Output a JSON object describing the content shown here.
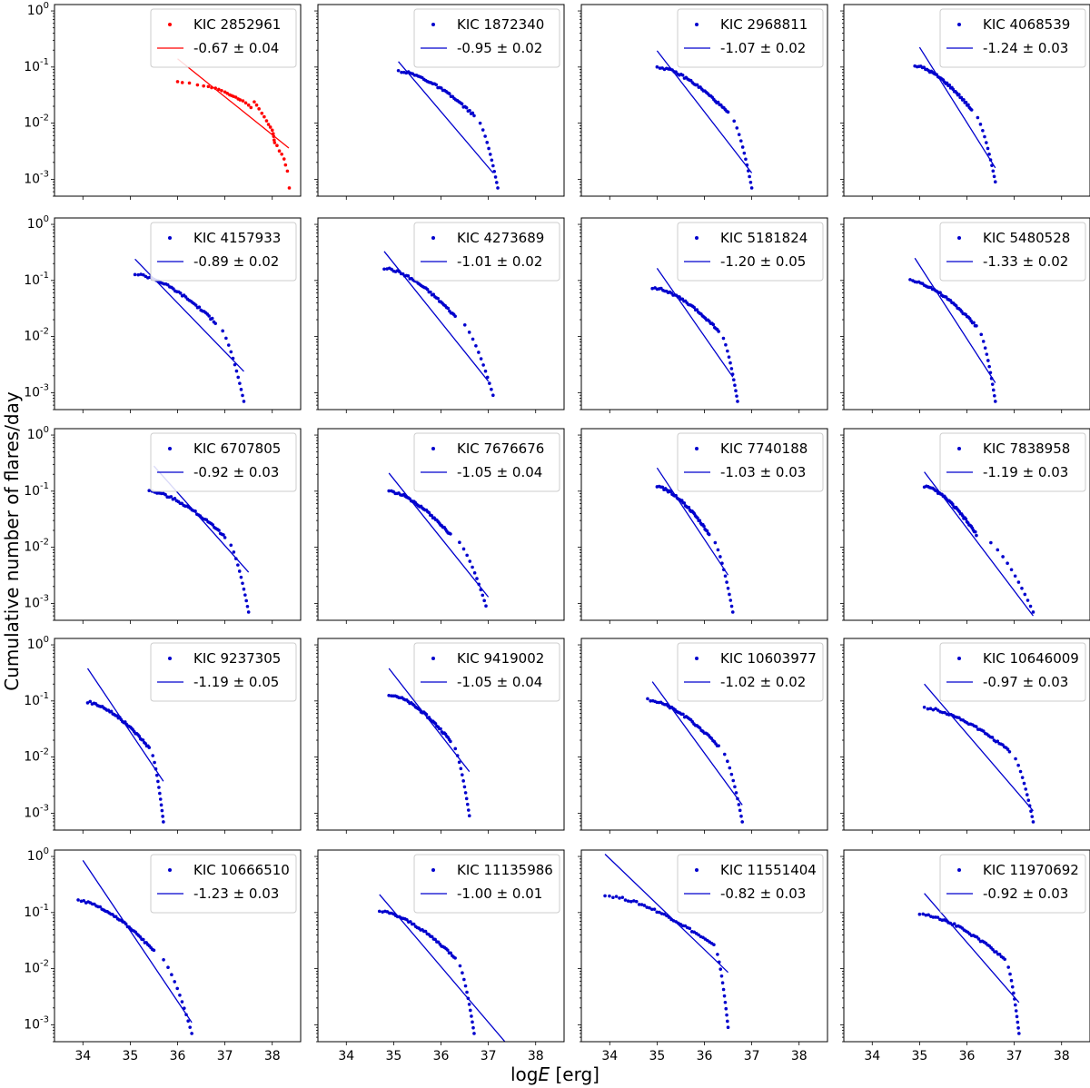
{
  "chart_data": {
    "type": "scatter",
    "grid_shape": [
      5,
      4
    ],
    "shared_x": true,
    "shared_y": true,
    "xlabel": "logE [erg]",
    "ylabel": "Cumulative number of flares/day",
    "xlim": [
      33.4,
      38.6
    ],
    "ylim": [
      0.0005,
      1.3
    ],
    "yscale": "log",
    "x_ticks": [
      34,
      35,
      36,
      37,
      38
    ],
    "x_tick_labels": [
      "34",
      "35",
      "36",
      "37",
      "38"
    ],
    "y_ticks": [
      1,
      0.1,
      0.01,
      0.001
    ],
    "y_tick_labels": [
      "10^0",
      "10^-1",
      "10^-2",
      "10^-3"
    ],
    "legend_position": "upper right",
    "panels": [
      {
        "star": "KIC 2852961",
        "slope": "-0.67 ± 0.04",
        "color": "#ff0000",
        "fit": [
          [
            36.0,
            0.14
          ],
          [
            38.35,
            0.0036
          ]
        ],
        "points": [
          [
            36.0,
            0.055
          ],
          [
            36.1,
            0.053
          ],
          [
            36.25,
            0.052
          ],
          [
            36.42,
            0.048
          ],
          [
            36.55,
            0.046
          ],
          [
            36.65,
            0.045
          ],
          [
            36.72,
            0.043
          ],
          [
            36.8,
            0.042
          ],
          [
            36.87,
            0.04
          ],
          [
            36.93,
            0.038
          ],
          [
            37.0,
            0.036
          ],
          [
            37.05,
            0.034
          ],
          [
            37.1,
            0.032
          ],
          [
            37.14,
            0.031
          ],
          [
            37.18,
            0.03
          ],
          [
            37.23,
            0.029
          ],
          [
            37.28,
            0.027
          ],
          [
            37.32,
            0.026
          ],
          [
            37.38,
            0.025
          ],
          [
            37.44,
            0.023
          ],
          [
            37.5,
            0.021
          ],
          [
            37.55,
            0.019
          ],
          [
            37.62,
            0.024
          ],
          [
            37.67,
            0.021
          ],
          [
            37.72,
            0.018
          ],
          [
            37.78,
            0.015
          ],
          [
            37.83,
            0.013
          ],
          [
            37.88,
            0.011
          ],
          [
            37.92,
            0.0095
          ],
          [
            37.96,
            0.0085
          ],
          [
            38.0,
            0.0075
          ],
          [
            38.02,
            0.0065
          ],
          [
            38.03,
            0.0058
          ],
          [
            38.04,
            0.005
          ],
          [
            38.05,
            0.0045
          ],
          [
            38.1,
            0.004
          ],
          [
            38.15,
            0.0032
          ],
          [
            38.2,
            0.0028
          ],
          [
            38.25,
            0.0023
          ],
          [
            38.28,
            0.0018
          ],
          [
            38.32,
            0.0014
          ],
          [
            38.36,
            0.0007
          ]
        ]
      },
      {
        "star": "KIC 1872340",
        "slope": "-0.95 ± 0.02",
        "color": "#0000cd",
        "fit": [
          [
            35.1,
            0.125
          ],
          [
            37.1,
            0.0013
          ]
        ],
        "start": [
          35.1,
          0.085
        ],
        "end": [
          37.2,
          0.0007
        ],
        "drop_x": 36.7
      },
      {
        "star": "KIC 2968811",
        "slope": "-1.07 ± 0.02",
        "color": "#0000cd",
        "fit": [
          [
            35.0,
            0.195
          ],
          [
            37.0,
            0.0013
          ]
        ],
        "start": [
          35.0,
          0.1
        ],
        "end": [
          37.0,
          0.0007
        ],
        "drop_x": 36.5
      },
      {
        "star": "KIC 4068539",
        "slope": "-1.24 ± 0.03",
        "color": "#0000cd",
        "fit": [
          [
            35.0,
            0.225
          ],
          [
            36.6,
            0.0016
          ]
        ],
        "start": [
          34.9,
          0.105
        ],
        "end": [
          36.6,
          0.0009
        ],
        "drop_x": 36.1
      },
      {
        "star": "KIC 4157933",
        "slope": "-0.89 ± 0.02",
        "color": "#0000cd",
        "fit": [
          [
            35.1,
            0.24
          ],
          [
            37.4,
            0.0024
          ]
        ],
        "start": [
          35.1,
          0.13
        ],
        "end": [
          37.4,
          0.0007
        ],
        "drop_x": 36.8
      },
      {
        "star": "KIC 4273689",
        "slope": "-1.01 ± 0.02",
        "color": "#0000cd",
        "fit": [
          [
            34.8,
            0.33
          ],
          [
            37.0,
            0.0016
          ]
        ],
        "start": [
          34.8,
          0.165
        ],
        "end": [
          37.1,
          0.0009
        ],
        "drop_x": 36.3
      },
      {
        "star": "KIC 5181824",
        "slope": "-1.20 ± 0.05",
        "color": "#0000cd",
        "fit": [
          [
            35.0,
            0.165
          ],
          [
            36.6,
            0.0019
          ]
        ],
        "start": [
          34.9,
          0.075
        ],
        "end": [
          36.7,
          0.0007
        ],
        "drop_x": 36.3
      },
      {
        "star": "KIC 5480528",
        "slope": "-1.33 ± 0.02",
        "color": "#0000cd",
        "fit": [
          [
            34.9,
            0.25
          ],
          [
            36.6,
            0.0015
          ]
        ],
        "start": [
          34.8,
          0.1
        ],
        "end": [
          36.6,
          0.0007
        ],
        "drop_x": 36.2
      },
      {
        "star": "KIC 6707805",
        "slope": "-0.92 ± 0.03",
        "color": "#0000cd",
        "fit": [
          [
            35.5,
            0.28
          ],
          [
            37.5,
            0.0036
          ]
        ],
        "start": [
          35.4,
          0.1
        ],
        "end": [
          37.5,
          0.0007
        ],
        "drop_x": 37.0
      },
      {
        "star": "KIC 7676676",
        "slope": "-1.05 ± 0.04",
        "color": "#0000cd",
        "fit": [
          [
            34.9,
            0.21
          ],
          [
            37.0,
            0.0013
          ]
        ],
        "start": [
          34.9,
          0.1
        ],
        "end": [
          36.95,
          0.0009
        ],
        "drop_x": 36.2
      },
      {
        "star": "KIC 7740188",
        "slope": "-1.03 ± 0.03",
        "color": "#0000cd",
        "fit": [
          [
            35.0,
            0.26
          ],
          [
            36.5,
            0.0032
          ]
        ],
        "start": [
          35.0,
          0.12
        ],
        "end": [
          36.6,
          0.0007
        ],
        "drop_x": 36.1
      },
      {
        "star": "KIC 7838958",
        "slope": "-1.19 ± 0.03",
        "color": "#0000cd",
        "fit": [
          [
            35.1,
            0.22
          ],
          [
            37.4,
            0.0006
          ]
        ],
        "start": [
          35.1,
          0.12
        ],
        "end": [
          37.4,
          0.0007
        ],
        "drop_x": 36.2
      },
      {
        "star": "KIC 9237305",
        "slope": "-1.19 ± 0.05",
        "color": "#0000cd",
        "fit": [
          [
            34.1,
            0.38
          ],
          [
            35.7,
            0.0037
          ]
        ],
        "start": [
          34.1,
          0.095
        ],
        "end": [
          35.7,
          0.0007
        ],
        "drop_x": 35.4
      },
      {
        "star": "KIC 9419002",
        "slope": "-1.05 ± 0.04",
        "color": "#0000cd",
        "fit": [
          [
            34.9,
            0.38
          ],
          [
            36.6,
            0.0055
          ]
        ],
        "start": [
          34.9,
          0.13
        ],
        "end": [
          36.6,
          0.0009
        ],
        "drop_x": 36.2
      },
      {
        "star": "KIC 10603977",
        "slope": "-1.02 ± 0.02",
        "color": "#0000cd",
        "fit": [
          [
            34.9,
            0.22
          ],
          [
            36.8,
            0.0014
          ]
        ],
        "start": [
          34.8,
          0.105
        ],
        "end": [
          36.8,
          0.0007
        ],
        "drop_x": 36.3
      },
      {
        "star": "KIC 10646009",
        "slope": "-0.97 ± 0.03",
        "color": "#0000cd",
        "fit": [
          [
            35.1,
            0.2
          ],
          [
            37.4,
            0.0011
          ]
        ],
        "start": [
          35.1,
          0.075
        ],
        "end": [
          37.4,
          0.0007
        ],
        "drop_x": 36.9
      },
      {
        "star": "KIC 10666510",
        "slope": "-1.23 ± 0.03",
        "color": "#0000cd",
        "fit": [
          [
            34.0,
            0.85
          ],
          [
            36.3,
            0.0011
          ]
        ],
        "start": [
          33.9,
          0.165
        ],
        "end": [
          36.3,
          0.0007
        ],
        "drop_x": 35.5
      },
      {
        "star": "KIC 11135986",
        "slope": "-1.00 ± 0.01",
        "color": "#0000cd",
        "fit": [
          [
            34.7,
            0.21
          ],
          [
            37.35,
            0.0005
          ]
        ],
        "start": [
          34.7,
          0.105
        ],
        "end": [
          36.7,
          0.0007
        ],
        "drop_x": 36.3
      },
      {
        "star": "KIC 11551404",
        "slope": "-0.82 ± 0.03",
        "color": "#0000cd",
        "fit": [
          [
            33.9,
            1.1
          ],
          [
            36.5,
            0.0086
          ]
        ],
        "start": [
          33.9,
          0.2
        ],
        "end": [
          36.5,
          0.0009
        ],
        "drop_x": 36.2
      },
      {
        "star": "KIC 11970692",
        "slope": "-0.92 ± 0.03",
        "color": "#0000cd",
        "fit": [
          [
            35.1,
            0.22
          ],
          [
            37.1,
            0.0025
          ]
        ],
        "start": [
          35.0,
          0.095
        ],
        "end": [
          37.1,
          0.0007
        ],
        "drop_x": 36.8
      }
    ]
  }
}
